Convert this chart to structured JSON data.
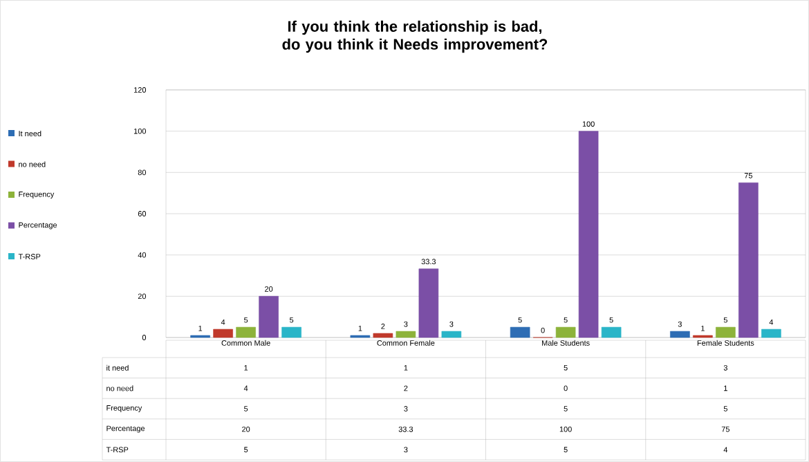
{
  "chart_data": [
    {
      "type": "bar",
      "title": "If you think the relationship is bad, do you think it Needs improvement?",
      "categories": [
        "Common Male",
        "Common Female",
        "Male Students",
        "Female Students"
      ],
      "series": [
        {
          "name": "It need",
          "color": "#2e6db4",
          "values": [
            1,
            1,
            5,
            3
          ],
          "value_labels": [
            "1",
            "1",
            "5",
            "3"
          ]
        },
        {
          "name": "no need",
          "color": "#c0392b",
          "values": [
            4,
            2,
            0,
            1
          ],
          "value_labels": [
            "4",
            "2",
            "0",
            "1"
          ]
        },
        {
          "name": "Frequency",
          "color": "#8db33a",
          "values": [
            5,
            3,
            5,
            5
          ],
          "value_labels": [
            "5",
            "3",
            "5",
            "5"
          ]
        },
        {
          "name": "Percentage",
          "color": "#7b4fa6",
          "values": [
            20,
            33.3,
            100,
            75
          ],
          "value_labels": [
            "20",
            "33.3",
            "100",
            "75"
          ]
        },
        {
          "name": "T-RSP",
          "color": "#2ab5c8",
          "values": [
            5,
            3,
            5,
            4
          ],
          "value_labels": [
            "5",
            "3",
            "5",
            "4"
          ]
        }
      ],
      "ylim": [
        0,
        120
      ],
      "yticks": [
        0,
        20,
        40,
        60,
        80,
        100,
        120
      ],
      "grid": "y",
      "legend": "left"
    },
    {
      "type": "other",
      "annotations": [
        "it need",
        "1",
        "1",
        "5",
        "3",
        "no need",
        "4",
        "2",
        "0",
        "1",
        "Frequency",
        "5",
        "3",
        "5",
        "5",
        "Percentage",
        "20",
        "33.3",
        "100",
        "75",
        "T-RSP",
        "5",
        "3",
        "5",
        "4"
      ]
    }
  ]
}
